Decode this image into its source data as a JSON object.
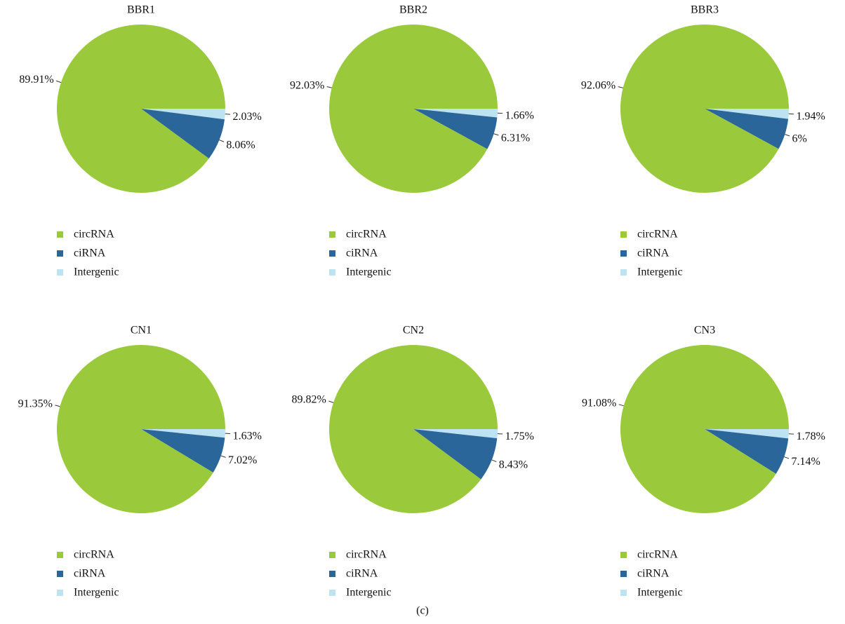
{
  "chart_data": [
    {
      "type": "pie",
      "title": "BBR1",
      "categories": [
        "circRNA",
        "ciRNA",
        "Intergenic"
      ],
      "values": [
        89.91,
        8.06,
        2.03
      ],
      "value_labels": [
        "89.91%",
        "8.06%",
        "2.03%"
      ],
      "colors": [
        "#9aca3c",
        "#2a6699",
        "#bde3f3"
      ]
    },
    {
      "type": "pie",
      "title": "BBR2",
      "categories": [
        "circRNA",
        "ciRNA",
        "Intergenic"
      ],
      "values": [
        92.03,
        6.31,
        1.66
      ],
      "value_labels": [
        "92.03%",
        "6.31%",
        "1.66%"
      ],
      "colors": [
        "#9aca3c",
        "#2a6699",
        "#bde3f3"
      ]
    },
    {
      "type": "pie",
      "title": "BBR3",
      "categories": [
        "circRNA",
        "ciRNA",
        "Intergenic"
      ],
      "values": [
        92.06,
        6,
        1.94
      ],
      "value_labels": [
        "92.06%",
        "6%",
        "1.94%"
      ],
      "colors": [
        "#9aca3c",
        "#2a6699",
        "#bde3f3"
      ]
    },
    {
      "type": "pie",
      "title": "CN1",
      "categories": [
        "circRNA",
        "ciRNA",
        "Intergenic"
      ],
      "values": [
        91.35,
        7.02,
        1.63
      ],
      "value_labels": [
        "91.35%",
        "7.02%",
        "1.63%"
      ],
      "colors": [
        "#9aca3c",
        "#2a6699",
        "#bde3f3"
      ]
    },
    {
      "type": "pie",
      "title": "CN2",
      "categories": [
        "circRNA",
        "ciRNA",
        "Intergenic"
      ],
      "values": [
        89.82,
        8.43,
        1.75
      ],
      "value_labels": [
        "89.82%",
        "8.43%",
        "1.75%"
      ],
      "colors": [
        "#9aca3c",
        "#2a6699",
        "#bde3f3"
      ]
    },
    {
      "type": "pie",
      "title": "CN3",
      "categories": [
        "circRNA",
        "ciRNA",
        "Intergenic"
      ],
      "values": [
        91.08,
        7.14,
        1.78
      ],
      "value_labels": [
        "91.08%",
        "7.14%",
        "1.78%"
      ],
      "colors": [
        "#9aca3c",
        "#2a6699",
        "#bde3f3"
      ]
    }
  ],
  "caption": "(c)"
}
